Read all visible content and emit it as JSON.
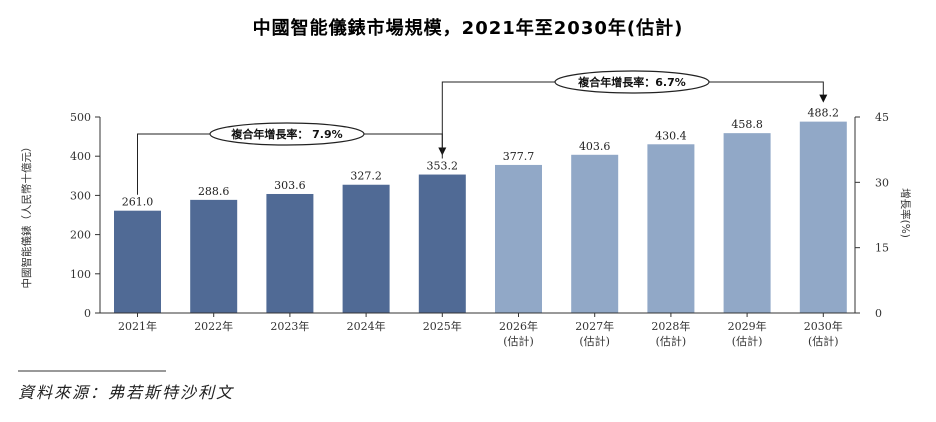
{
  "colors": {
    "actual": "#506a95",
    "forecast": "#91a8c7",
    "axis": "#333333"
  },
  "source_text": "資料來源：弗若斯特沙利文",
  "cagr_labels": [
    "複合年增長率： 7.9%",
    "複合年增長率：6.7%"
  ],
  "chart_data": {
    "type": "bar",
    "title": "中國智能儀錶市場規模，2021年至2030年(估計)",
    "ylabel": "中國智能儀錶（人民幣十億元）",
    "y2label": "增長率(%)",
    "ylim": [
      0,
      500
    ],
    "y2lim": [
      0,
      45
    ],
    "yticks": [
      "0",
      "100",
      "200",
      "300",
      "400",
      "500"
    ],
    "y2ticks": [
      "0",
      "15",
      "30",
      "45"
    ],
    "categories": [
      "2021年",
      "2022年",
      "2023年",
      "2024年",
      "2025年",
      "2026年",
      "2027年",
      "2028年",
      "2029年",
      "2030年"
    ],
    "category_subtitles": [
      "",
      "",
      "",
      "",
      "",
      "(估計)",
      "(估計)",
      "(估計)",
      "(估計)",
      "(估計)"
    ],
    "values": [
      261.0,
      288.6,
      303.6,
      327.2,
      353.2,
      377.7,
      403.6,
      430.4,
      458.8,
      488.2
    ],
    "value_labels": [
      "261.0",
      "288.6",
      "303.6",
      "327.2",
      "353.2",
      "377.7",
      "403.6",
      "430.4",
      "458.8",
      "488.2"
    ],
    "forecast": [
      false,
      false,
      false,
      false,
      false,
      true,
      true,
      true,
      true,
      true
    ],
    "grid": false,
    "legend": "none"
  }
}
